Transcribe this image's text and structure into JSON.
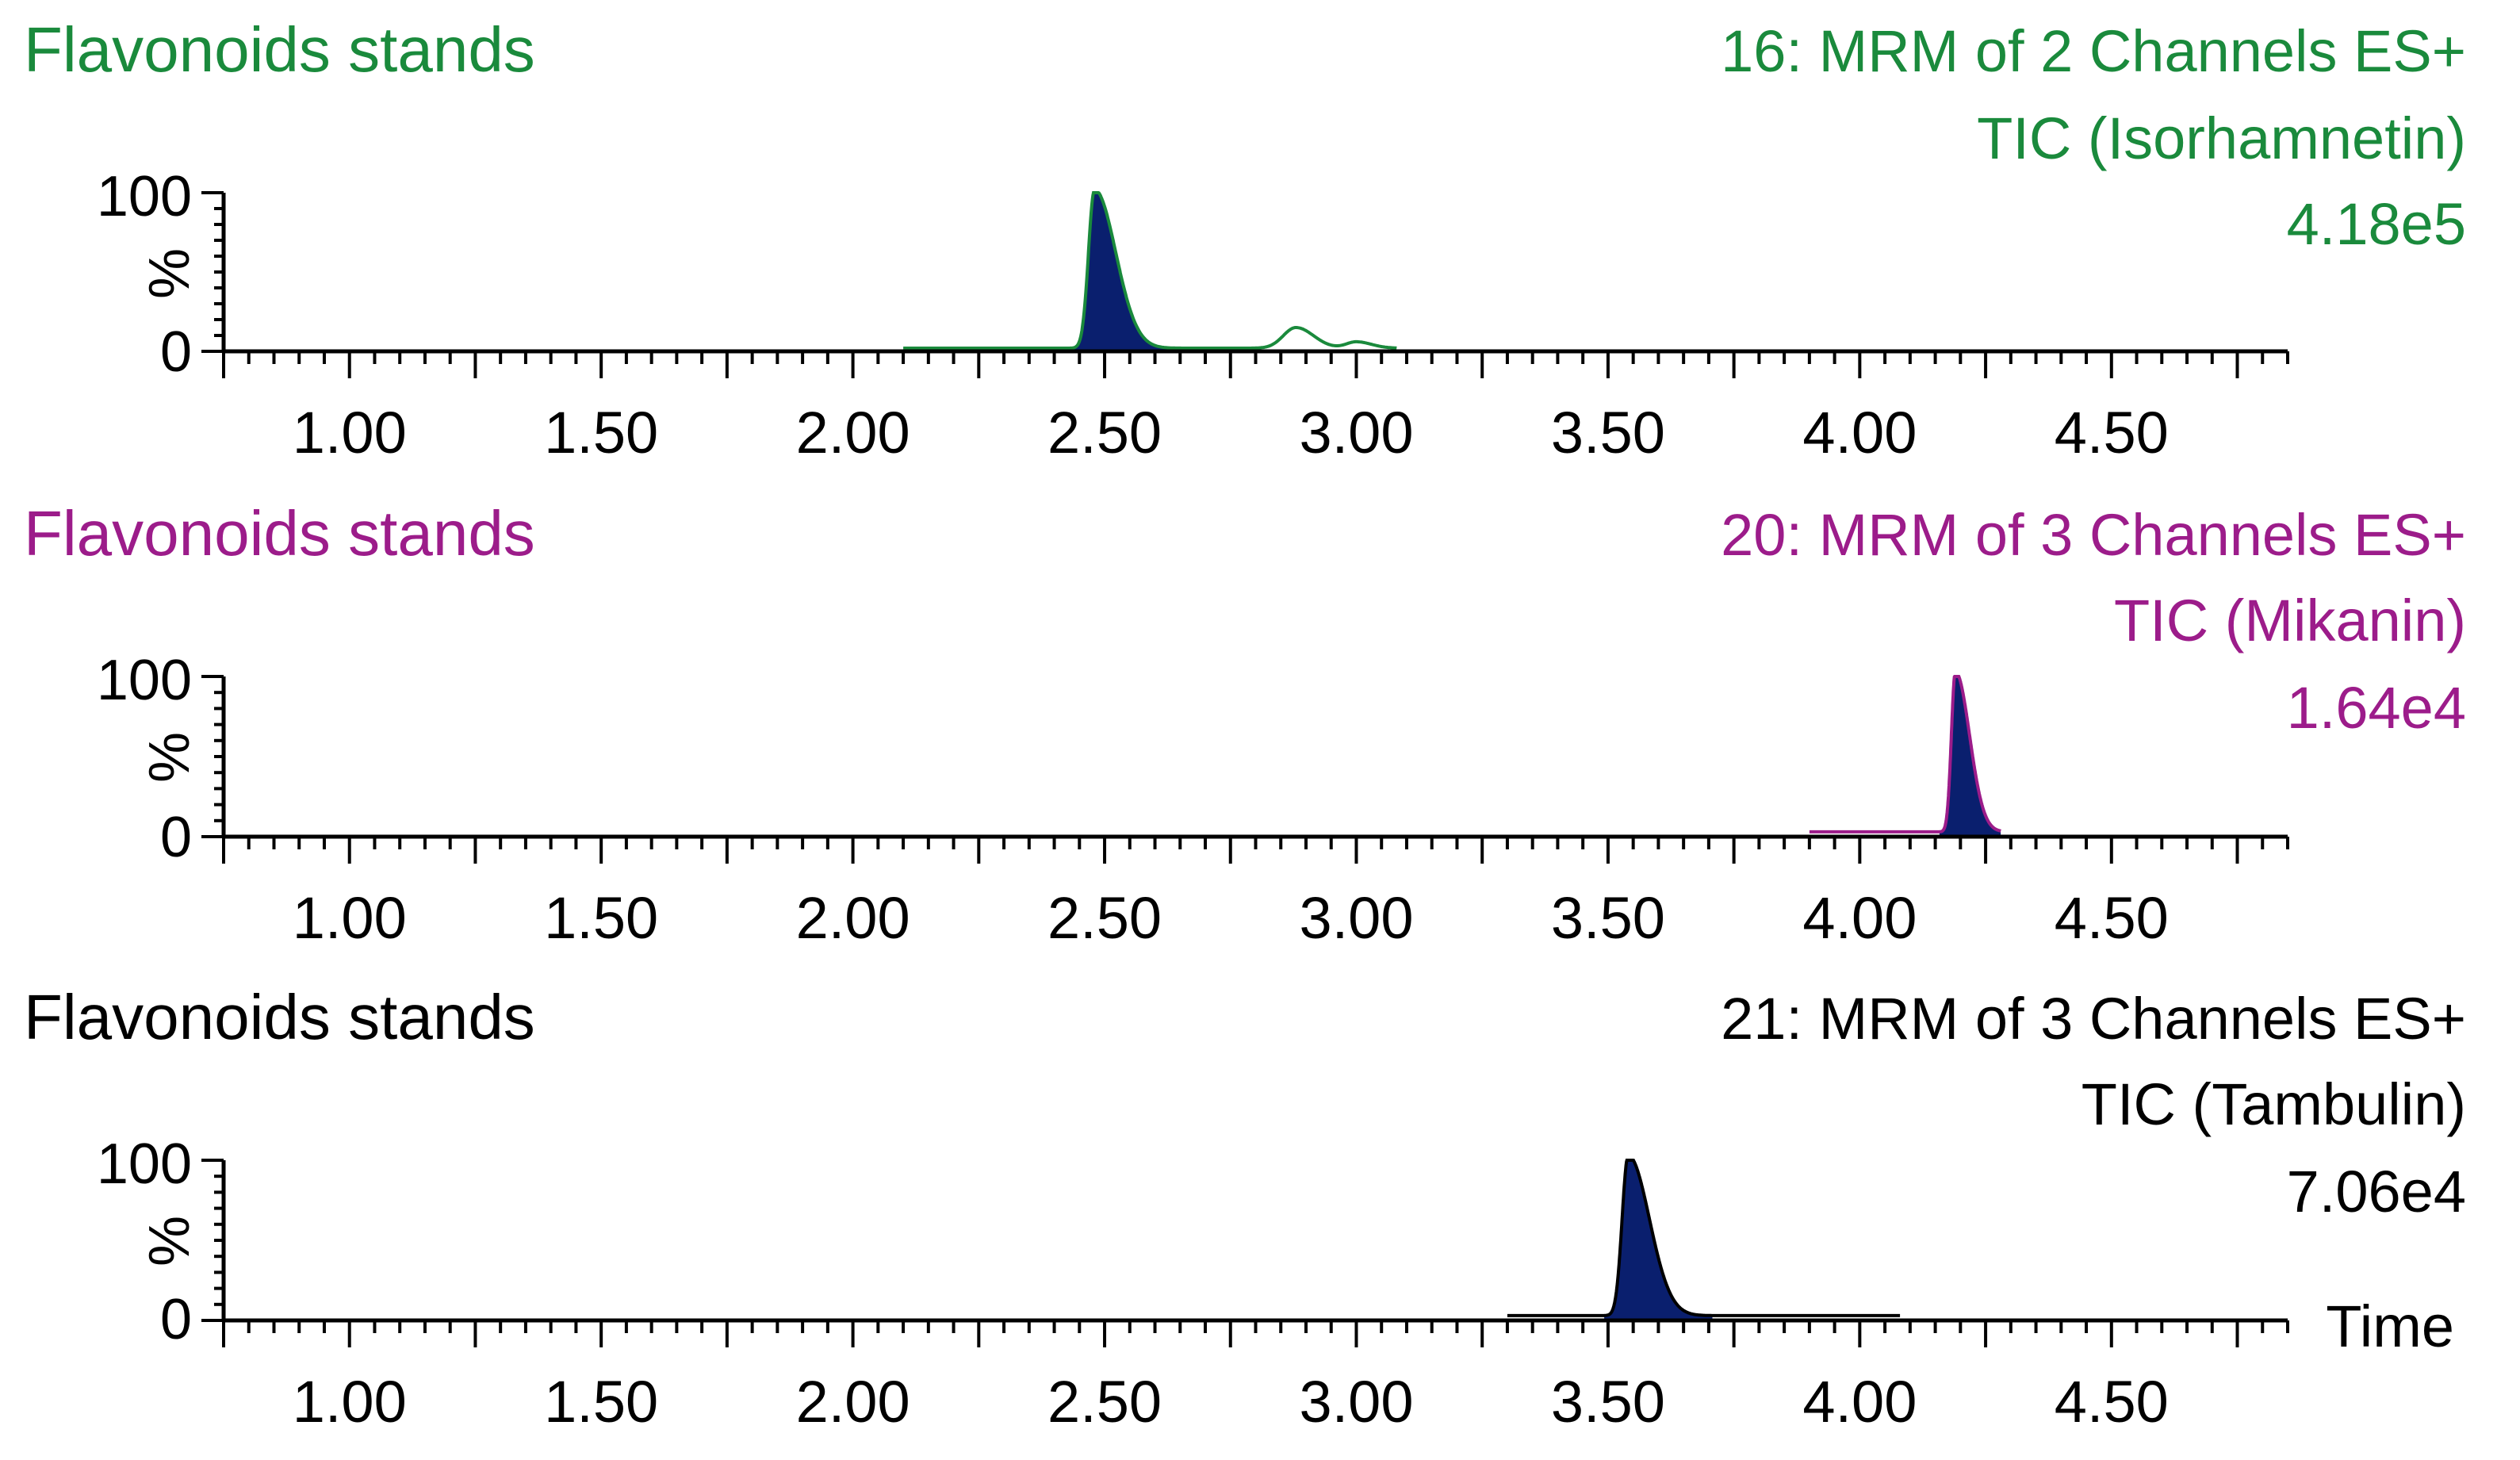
{
  "chart_data": [
    {
      "type": "line",
      "sample": "Flavonoids stands",
      "function": "16: MRM of 2 Channels ES+",
      "trace": "TIC (Isorhamnetin)",
      "intensity": "4.18e5",
      "color": "#1a8a3c",
      "fill_color": "#0a1f6e",
      "ylabel": "%",
      "yticks": [
        "100",
        "0"
      ],
      "ylim": [
        0,
        100
      ],
      "xlim": [
        0.75,
        4.85
      ],
      "xticks": [
        "1.00",
        "1.50",
        "2.00",
        "2.50",
        "3.00",
        "3.50",
        "4.00",
        "4.50"
      ],
      "xlabel": "",
      "trace_range": [
        2.1,
        3.08
      ],
      "peaks": [
        {
          "rt": 2.48,
          "height": 100,
          "width": 0.012,
          "tail": 0.03,
          "filled": true
        },
        {
          "rt": 2.88,
          "height": 13,
          "width": 0.025,
          "tail": 0.01,
          "filled": false
        },
        {
          "rt": 3.0,
          "height": 4,
          "width": 0.02,
          "tail": 0.01,
          "filled": false
        }
      ],
      "baseline": 2
    },
    {
      "type": "line",
      "sample": "Flavonoids stands",
      "function": "20: MRM of 3 Channels ES+",
      "trace": "TIC (Mikanin)",
      "intensity": "1.64e4",
      "color": "#9c1c8a",
      "fill_color": "#0a1f6e",
      "ylabel": "%",
      "yticks": [
        "100",
        "0"
      ],
      "ylim": [
        0,
        100
      ],
      "xlim": [
        0.75,
        4.85
      ],
      "xticks": [
        "1.00",
        "1.50",
        "2.00",
        "2.50",
        "3.00",
        "3.50",
        "4.00",
        "4.50"
      ],
      "xlabel": "",
      "trace_range": [
        3.9,
        4.28
      ],
      "peaks": [
        {
          "rt": 4.19,
          "height": 100,
          "width": 0.008,
          "tail": 0.02,
          "filled": true
        }
      ],
      "baseline": 3
    },
    {
      "type": "line",
      "sample": "Flavonoids stands",
      "function": "21: MRM of 3 Channels ES+",
      "trace": "TIC (Tambulin)",
      "intensity": "7.06e4",
      "color": "#000000",
      "fill_color": "#0a1f6e",
      "ylabel": "%",
      "yticks": [
        "100",
        "0"
      ],
      "ylim": [
        0,
        100
      ],
      "xlim": [
        0.75,
        4.85
      ],
      "xticks": [
        "1.00",
        "1.50",
        "2.00",
        "2.50",
        "3.00",
        "3.50",
        "4.00",
        "4.50"
      ],
      "xlabel": "Time",
      "trace_range": [
        3.3,
        4.08
      ],
      "peaks": [
        {
          "rt": 3.54,
          "height": 100,
          "width": 0.012,
          "tail": 0.03,
          "filled": true
        }
      ],
      "baseline": 3
    }
  ]
}
